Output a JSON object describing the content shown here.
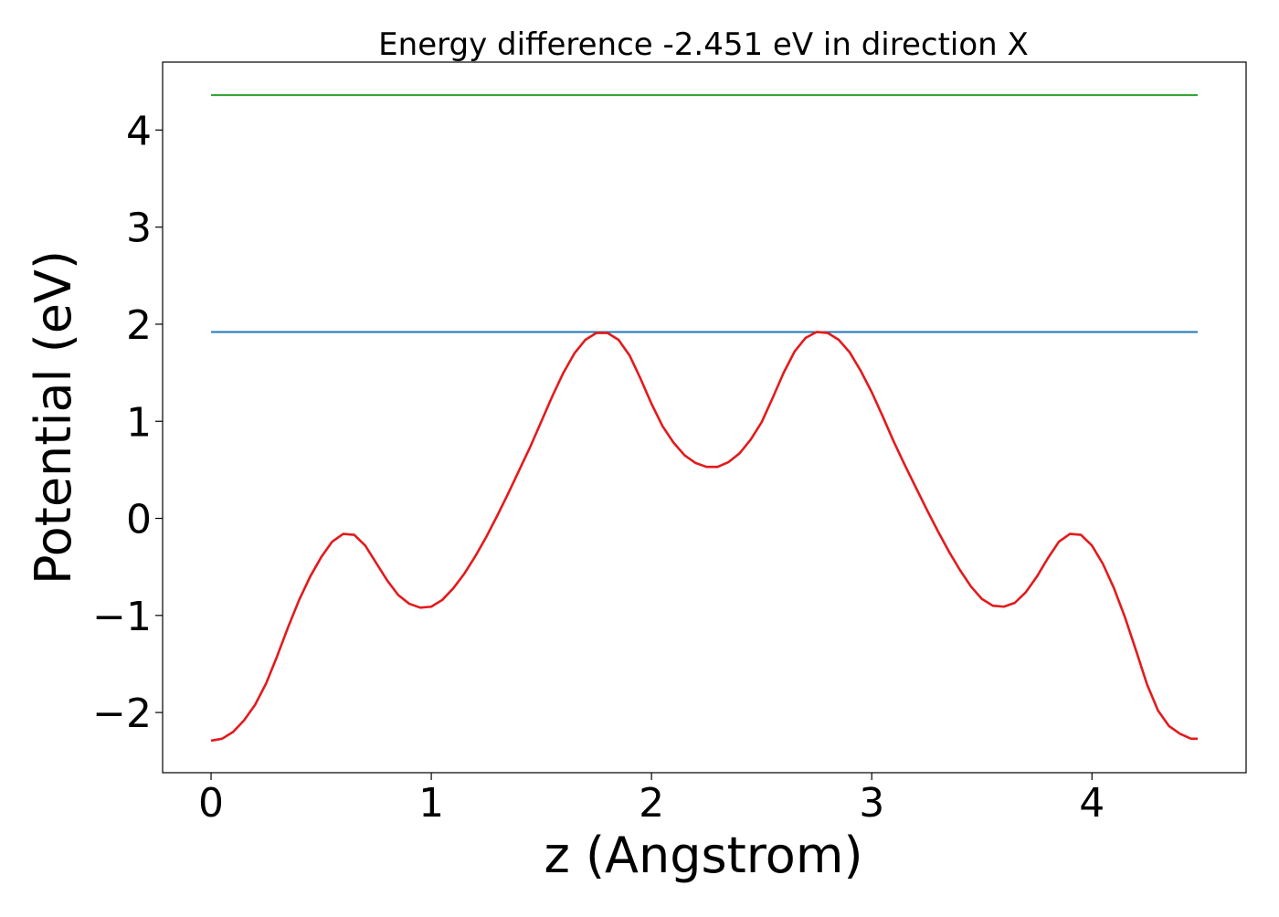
{
  "chart_data": {
    "type": "line",
    "title": "Energy difference -2.451 eV in direction X",
    "xlabel": "z (Angstrom)",
    "ylabel": "Potential (eV)",
    "xlim": [
      -0.22,
      4.7
    ],
    "ylim": [
      -2.62,
      4.7
    ],
    "grid": false,
    "x_ticks": [
      0,
      1,
      2,
      3,
      4
    ],
    "y_ticks": [
      -2,
      -1,
      0,
      1,
      2,
      3,
      4
    ],
    "x_tick_labels": [
      "0",
      "1",
      "2",
      "3",
      "4"
    ],
    "y_tick_labels": [
      "−2",
      "−1",
      "0",
      "1",
      "2",
      "3",
      "4"
    ],
    "series": [
      {
        "color": "#2ca02c",
        "x": [
          0,
          4.48
        ],
        "y": [
          4.36,
          4.36
        ]
      },
      {
        "color": "#1f77b4",
        "x": [
          0,
          4.48
        ],
        "y": [
          1.92,
          1.92
        ]
      },
      {
        "color": "#e31a1c",
        "x": [
          0.0,
          0.05,
          0.1,
          0.15,
          0.2,
          0.25,
          0.3,
          0.35,
          0.4,
          0.45,
          0.5,
          0.55,
          0.6,
          0.65,
          0.7,
          0.75,
          0.8,
          0.85,
          0.9,
          0.95,
          1.0,
          1.05,
          1.1,
          1.15,
          1.2,
          1.25,
          1.3,
          1.35,
          1.4,
          1.45,
          1.5,
          1.55,
          1.6,
          1.65,
          1.7,
          1.75,
          1.8,
          1.85,
          1.9,
          1.95,
          2.0,
          2.05,
          2.1,
          2.15,
          2.2,
          2.25,
          2.3,
          2.35,
          2.4,
          2.45,
          2.5,
          2.55,
          2.6,
          2.65,
          2.7,
          2.75,
          2.8,
          2.85,
          2.9,
          2.95,
          3.0,
          3.05,
          3.1,
          3.15,
          3.2,
          3.25,
          3.3,
          3.35,
          3.4,
          3.45,
          3.5,
          3.55,
          3.6,
          3.65,
          3.7,
          3.75,
          3.8,
          3.85,
          3.9,
          3.95,
          4.0,
          4.05,
          4.1,
          4.15,
          4.2,
          4.25,
          4.3,
          4.35,
          4.4,
          4.45,
          4.48
        ],
        "y": [
          -2.29,
          -2.27,
          -2.2,
          -2.08,
          -1.92,
          -1.7,
          -1.42,
          -1.12,
          -0.84,
          -0.6,
          -0.4,
          -0.24,
          -0.16,
          -0.17,
          -0.28,
          -0.46,
          -0.64,
          -0.79,
          -0.88,
          -0.92,
          -0.91,
          -0.84,
          -0.72,
          -0.57,
          -0.39,
          -0.19,
          0.03,
          0.26,
          0.5,
          0.74,
          1.0,
          1.26,
          1.5,
          1.7,
          1.84,
          1.91,
          1.91,
          1.84,
          1.68,
          1.44,
          1.18,
          0.95,
          0.78,
          0.65,
          0.57,
          0.53,
          0.53,
          0.58,
          0.67,
          0.81,
          0.99,
          1.24,
          1.5,
          1.72,
          1.86,
          1.92,
          1.91,
          1.84,
          1.71,
          1.52,
          1.3,
          1.05,
          0.79,
          0.55,
          0.32,
          0.09,
          -0.13,
          -0.34,
          -0.53,
          -0.7,
          -0.83,
          -0.9,
          -0.91,
          -0.87,
          -0.76,
          -0.6,
          -0.41,
          -0.24,
          -0.16,
          -0.17,
          -0.28,
          -0.47,
          -0.72,
          -1.02,
          -1.36,
          -1.71,
          -1.98,
          -2.14,
          -2.22,
          -2.27,
          -2.27
        ]
      }
    ]
  }
}
